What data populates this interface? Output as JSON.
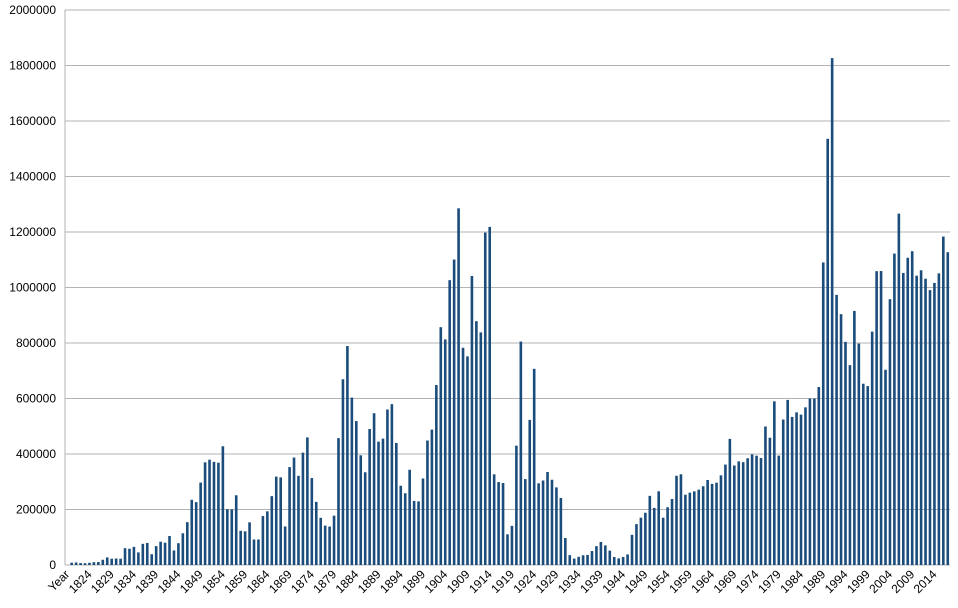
{
  "chart_data": {
    "type": "bar",
    "color": "#1a4c7c",
    "grid": true,
    "ylim": [
      0,
      2000000
    ],
    "yticks": [
      0,
      200000,
      400000,
      600000,
      800000,
      1000000,
      1200000,
      1400000,
      1600000,
      1800000,
      2000000
    ],
    "categories": [
      "Year",
      null,
      null,
      null,
      null,
      "1824",
      null,
      null,
      null,
      null,
      "1829",
      null,
      null,
      null,
      null,
      "1834",
      null,
      null,
      null,
      null,
      "1839",
      null,
      null,
      null,
      null,
      "1844",
      null,
      null,
      null,
      null,
      "1849",
      null,
      null,
      null,
      null,
      "1854",
      null,
      null,
      null,
      null,
      "1859",
      null,
      null,
      null,
      null,
      "1864",
      null,
      null,
      null,
      null,
      "1869",
      null,
      null,
      null,
      null,
      "1874",
      null,
      null,
      null,
      null,
      "1879",
      null,
      null,
      null,
      null,
      "1884",
      null,
      null,
      null,
      null,
      "1889",
      null,
      null,
      null,
      null,
      "1894",
      null,
      null,
      null,
      null,
      "1899",
      null,
      null,
      null,
      null,
      "1904",
      null,
      null,
      null,
      null,
      "1909",
      null,
      null,
      null,
      null,
      "1914",
      null,
      null,
      null,
      null,
      "1919",
      null,
      null,
      null,
      null,
      "1924",
      null,
      null,
      null,
      null,
      "1929",
      null,
      null,
      null,
      null,
      "1934",
      null,
      null,
      null,
      null,
      "1939",
      null,
      null,
      null,
      null,
      "1944",
      null,
      null,
      null,
      null,
      "1949",
      null,
      null,
      null,
      null,
      "1954",
      null,
      null,
      null,
      null,
      "1959",
      null,
      null,
      null,
      null,
      "1964",
      null,
      null,
      null,
      null,
      "1969",
      null,
      null,
      null,
      null,
      "1974",
      null,
      null,
      null,
      null,
      "1979",
      null,
      null,
      null,
      null,
      "1984",
      null,
      null,
      null,
      null,
      "1989",
      null,
      null,
      null,
      null,
      "1994",
      null,
      null,
      null,
      null,
      "1999",
      null,
      null,
      null,
      null,
      "2004",
      null,
      null,
      null,
      null,
      "2009",
      null,
      null,
      null,
      null,
      "2014",
      null,
      null,
      null
    ],
    "values": [
      null,
      8385,
      9127,
      6911,
      6354,
      7912,
      10199,
      10837,
      18875,
      27382,
      22520,
      23322,
      22633,
      60482,
      58640,
      65365,
      45374,
      76242,
      79340,
      38914,
      68069,
      84066,
      80289,
      104565,
      52496,
      78615,
      114371,
      154416,
      234968,
      226527,
      297024,
      369980,
      379466,
      371603,
      368645,
      427833,
      200877,
      200436,
      251306,
      123126,
      121282,
      153640,
      91918,
      91985,
      176282,
      193418,
      248120,
      318568,
      315722,
      138840,
      352768,
      387203,
      321350,
      404806,
      459803,
      313339,
      227498,
      169986,
      141857,
      138469,
      177826,
      457257,
      669431,
      788992,
      603322,
      518592,
      395346,
      334203,
      490109,
      546889,
      444427,
      455302,
      560319,
      579663,
      439730,
      285631,
      258536,
      343267,
      230832,
      229299,
      311715,
      448572,
      487918,
      648743,
      857046,
      812870,
      1026499,
      1100735,
      1285349,
      782870,
      751786,
      1041570,
      878587,
      838172,
      1197892,
      1218480,
      326700,
      298826,
      295403,
      110618,
      141132,
      430001,
      805228,
      309556,
      522919,
      706896,
      294314,
      304488,
      335175,
      307255,
      279678,
      241700,
      97139,
      35576,
      23068,
      29470,
      34956,
      36329,
      50244,
      67895,
      82998,
      70756,
      51776,
      28781,
      23725,
      28551,
      38119,
      108721,
      147292,
      170570,
      188317,
      249187,
      205717,
      265520,
      170434,
      208177,
      237790,
      321625,
      326867,
      253265,
      260686,
      265398,
      271344,
      283763,
      306260,
      292248,
      296697,
      323040,
      361972,
      454448,
      358579,
      373326,
      370478,
      384685,
      398515,
      393919,
      385378,
      499093,
      458755,
      589810,
      394244,
      524295,
      595014,
      533624,
      550052,
      541811,
      568149,
      600027,
      599889,
      641346,
      1090172,
      1535872,
      1826595,
      973445,
      903916,
      803993,
      720177,
      915560,
      797847,
      653206,
      644787,
      841002,
      1058902,
      1059356,
      703542,
      957883,
      1122257,
      1266129,
      1052415,
      1107126,
      1130818,
      1042625,
      1062040,
      1031631,
      990553,
      1016518,
      1051031,
      1183505,
      1127167
    ]
  }
}
